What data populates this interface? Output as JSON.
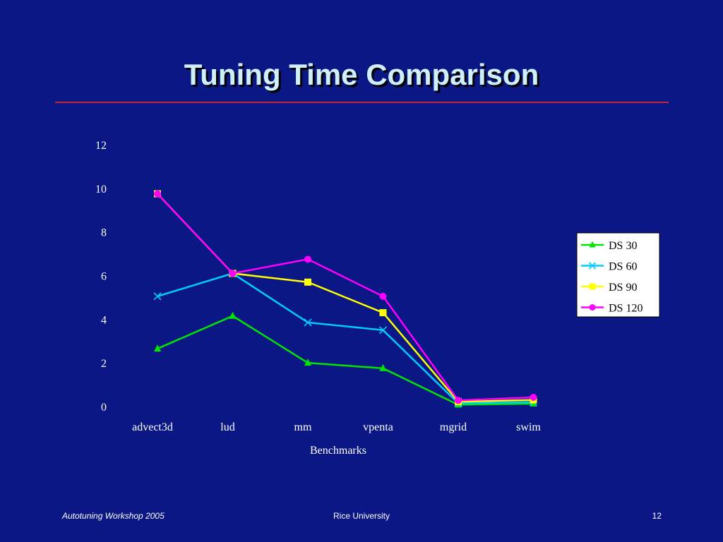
{
  "slide": {
    "title": "Tuning Time Comparison",
    "footer_left": "Autotuning Workshop  2005",
    "footer_center": "Rice University",
    "footer_right": "12"
  },
  "colors": {
    "background": "#0a1785",
    "title": "#cfeffb",
    "rule": "#c5263b",
    "text": "#ffffff"
  },
  "chart_data": {
    "type": "line",
    "title": "",
    "xlabel": "Benchmarks",
    "ylabel": "",
    "categories": [
      "advect3d",
      "lud",
      "mm",
      "vpenta",
      "mgrid",
      "swim"
    ],
    "ylim": [
      0,
      12
    ],
    "yticks": [
      0,
      2,
      4,
      6,
      8,
      10,
      12
    ],
    "grid": false,
    "legend_position": "right",
    "series": [
      {
        "name": "DS 30",
        "color": "#00e600",
        "marker": "triangle",
        "values": [
          2.65,
          4.15,
          2.0,
          1.75,
          0.08,
          0.13
        ]
      },
      {
        "name": "DS 60",
        "color": "#00ccff",
        "marker": "x",
        "values": [
          5.05,
          6.1,
          3.85,
          3.5,
          0.15,
          0.2
        ]
      },
      {
        "name": "DS 90",
        "color": "#ffff00",
        "marker": "square",
        "values": [
          9.75,
          6.1,
          5.7,
          4.3,
          0.22,
          0.3
        ]
      },
      {
        "name": "DS 120",
        "color": "#ff00ff",
        "marker": "circle",
        "values": [
          9.75,
          6.1,
          6.75,
          5.05,
          0.28,
          0.42
        ]
      }
    ]
  }
}
